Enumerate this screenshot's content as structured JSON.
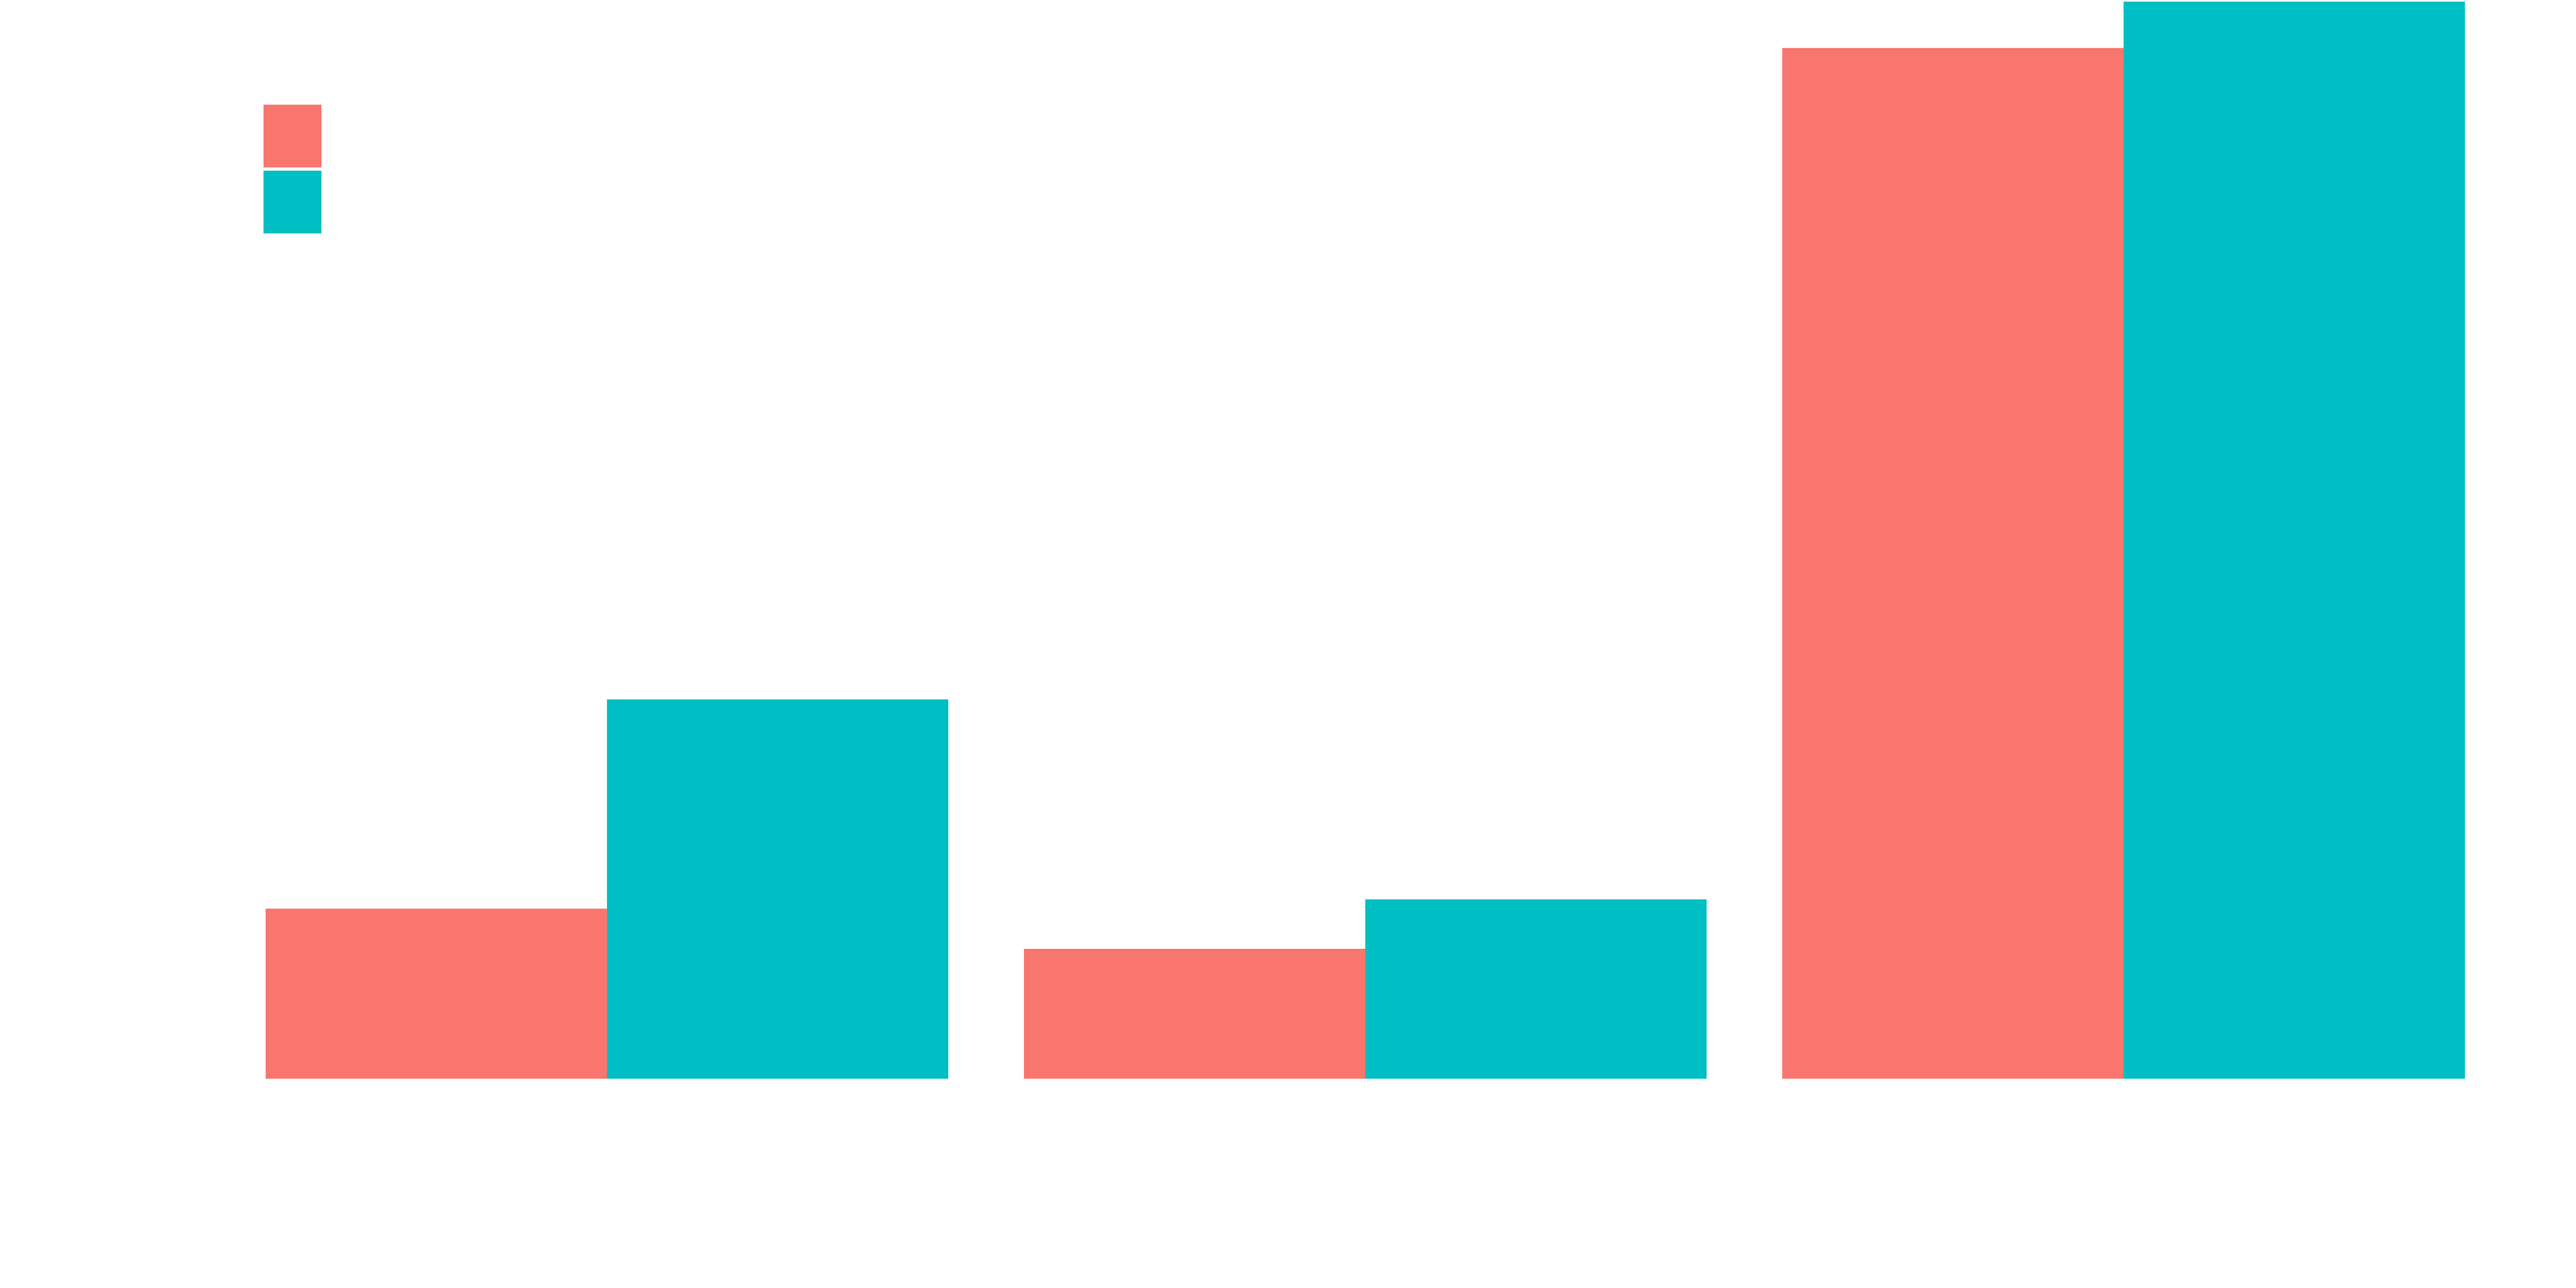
{
  "chart_data": {
    "type": "bar",
    "title": "",
    "xlabel": "",
    "ylabel": "",
    "categories": [
      "",
      "",
      ""
    ],
    "series": [
      {
        "color": "#F8766D",
        "values": [
          16.5,
          12.6,
          100.0
        ]
      },
      {
        "color": "#00BFC4",
        "values": [
          36.8,
          17.4,
          104.5
        ]
      }
    ],
    "ylim": [
      0,
      104.5
    ],
    "grid": false,
    "legend": {
      "position": "top-left",
      "entries": [
        "",
        ""
      ]
    }
  }
}
